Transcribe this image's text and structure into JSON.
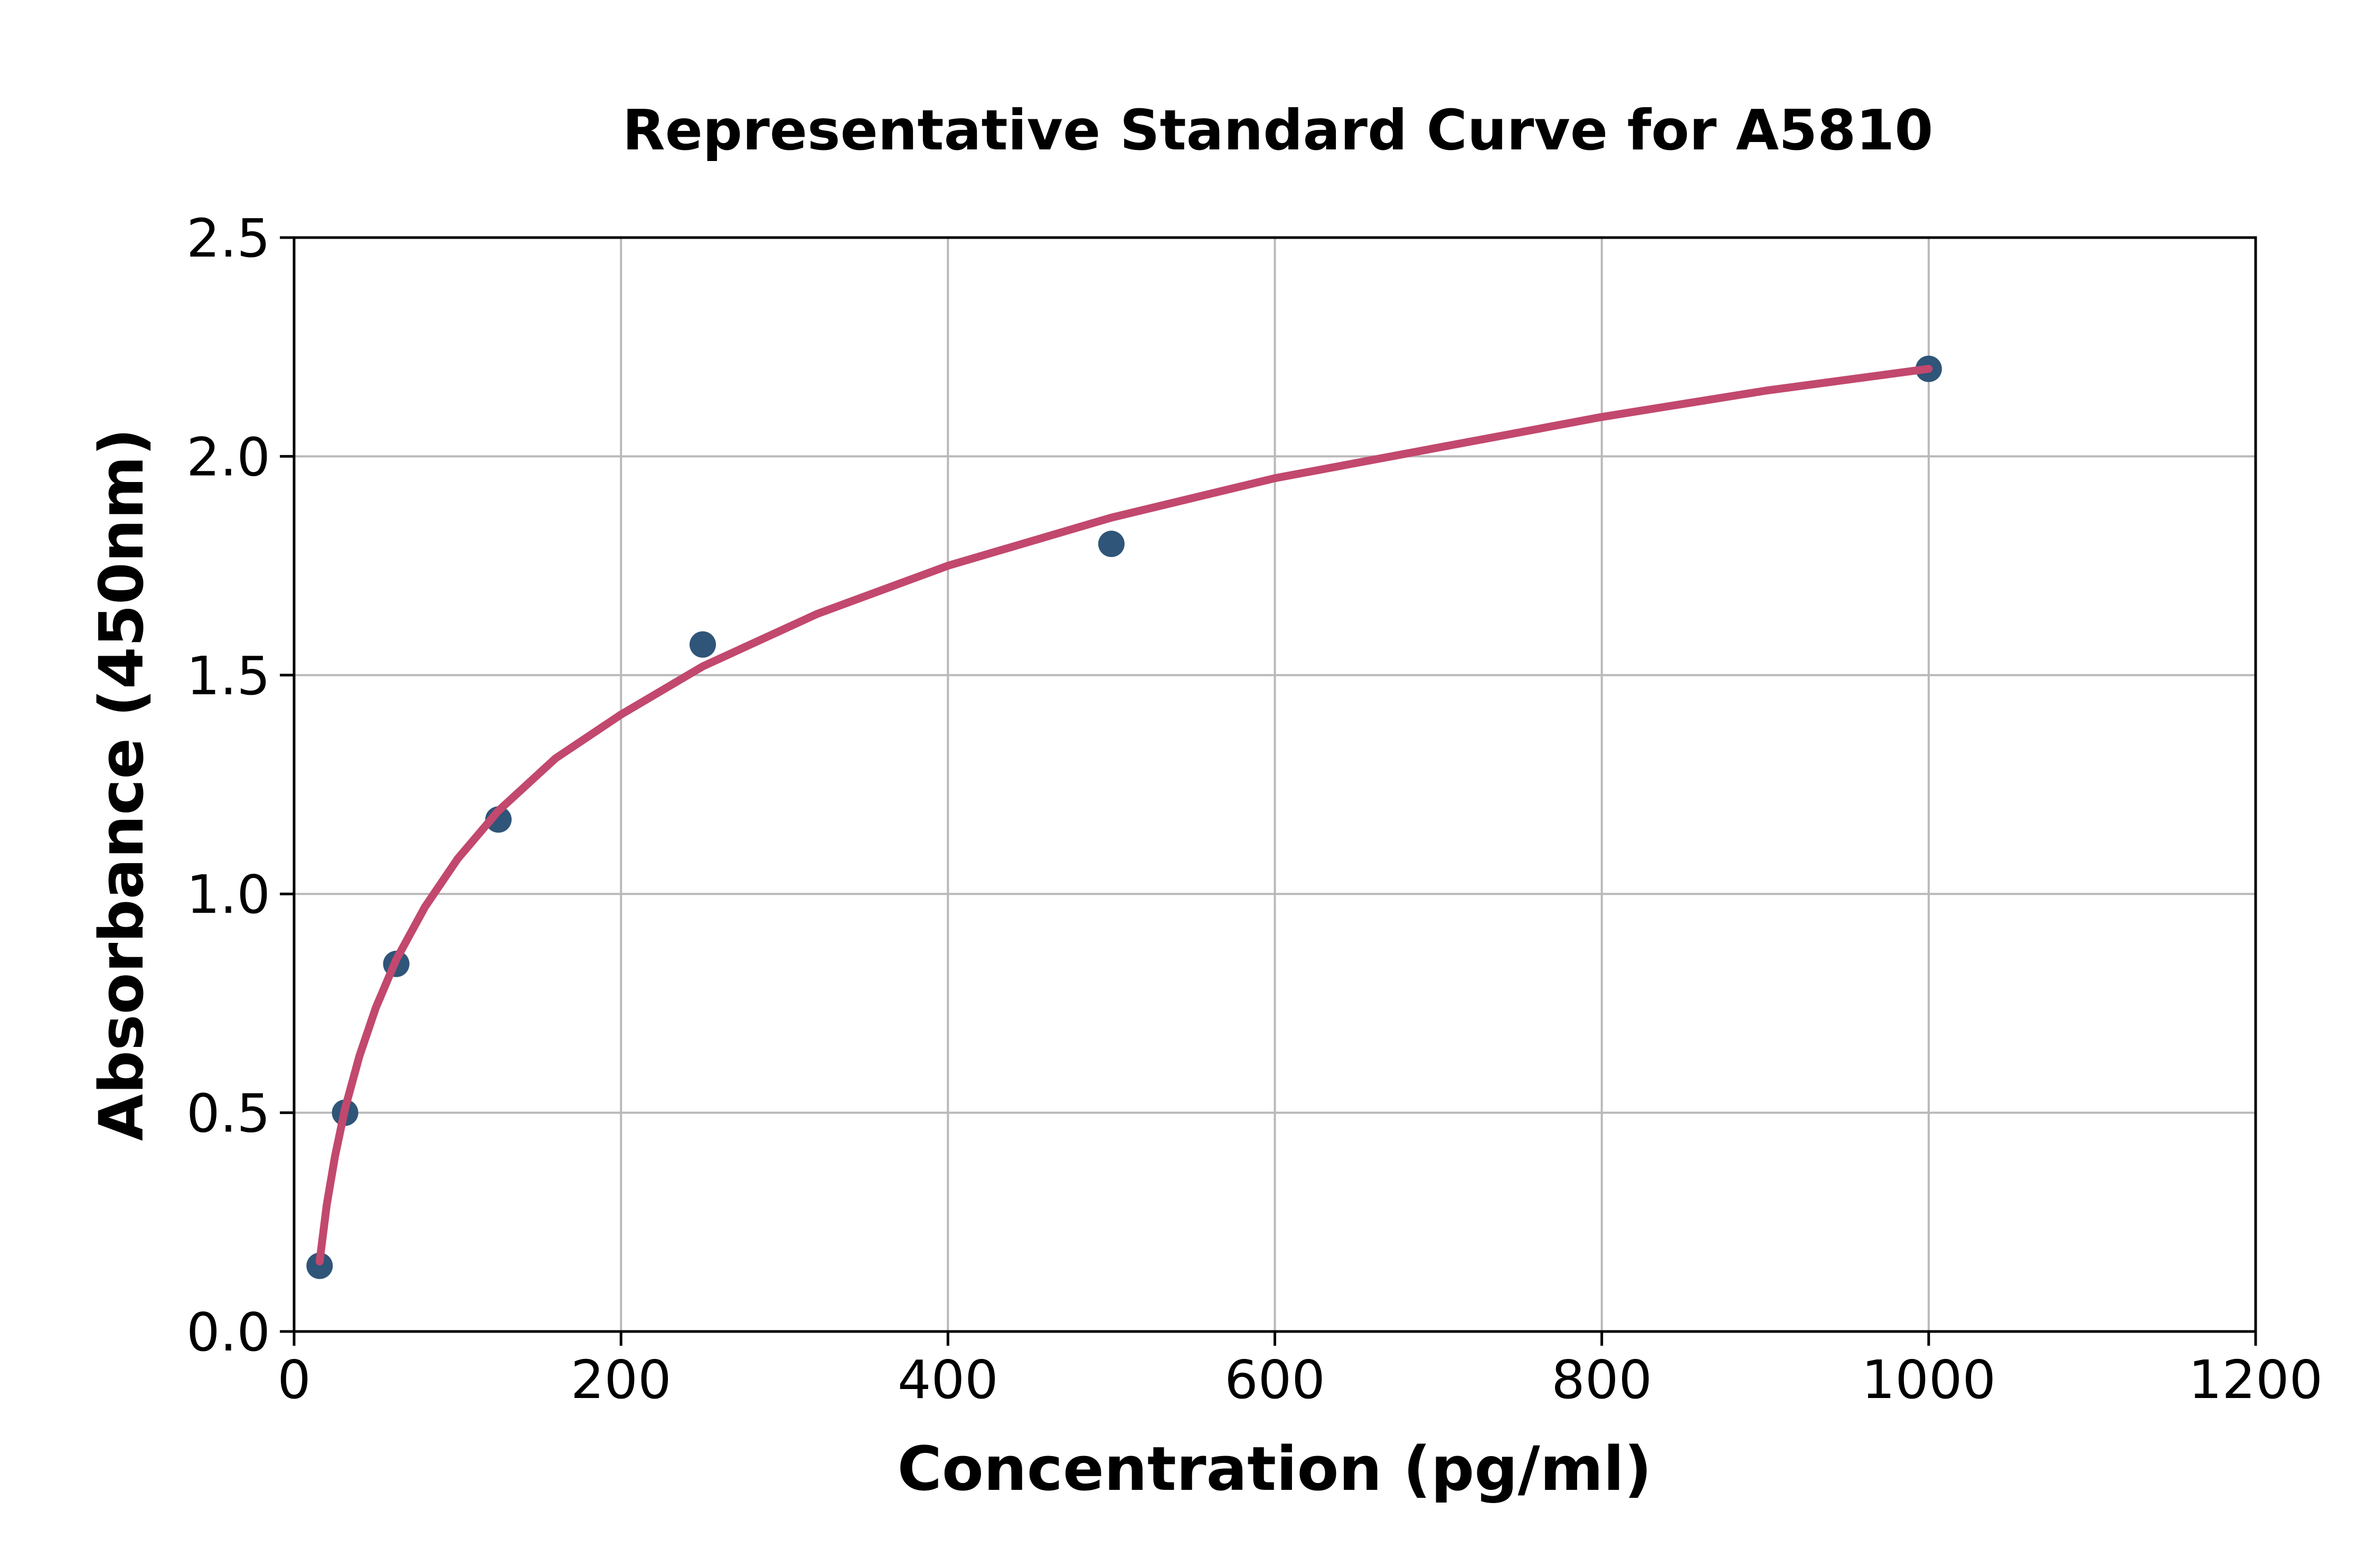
{
  "page": {
    "background": "#ffffff"
  },
  "chart_data": {
    "type": "scatter",
    "title": "Representative Standard Curve for A5810",
    "xlabel": "Concentration (pg/ml)",
    "ylabel": "Absorbance (450nm)",
    "xlim": [
      0,
      1200
    ],
    "ylim": [
      0.0,
      2.5
    ],
    "grid": true,
    "legend": false,
    "x_ticks": {
      "values": [
        0,
        200,
        400,
        600,
        800,
        1000,
        1200
      ],
      "labels": [
        "0",
        "200",
        "400",
        "600",
        "800",
        "1000",
        "1200"
      ]
    },
    "y_ticks": {
      "values": [
        0.0,
        0.5,
        1.0,
        1.5,
        2.0,
        2.5
      ],
      "labels": [
        "0.0",
        "0.5",
        "1.0",
        "1.5",
        "2.0",
        "2.5"
      ]
    },
    "series": [
      {
        "name": "standard-points",
        "type": "scatter",
        "color": "#2f5578",
        "marker_radius": 25,
        "x": [
          15.6,
          31.2,
          62.5,
          125,
          250,
          500,
          1000
        ],
        "y": [
          0.15,
          0.5,
          0.84,
          1.17,
          1.57,
          1.8,
          2.2
        ]
      },
      {
        "name": "fit-curve",
        "type": "line",
        "color": "#c2486e",
        "stroke_width": 15,
        "x": [
          15.6,
          20,
          25,
          31.2,
          40,
          50,
          62.5,
          80,
          100,
          125,
          160,
          200,
          250,
          320,
          400,
          500,
          600,
          700,
          800,
          900,
          1000
        ],
        "y": [
          0.16,
          0.29,
          0.4,
          0.51,
          0.63,
          0.74,
          0.85,
          0.97,
          1.08,
          1.19,
          1.31,
          1.41,
          1.52,
          1.64,
          1.75,
          1.86,
          1.95,
          2.02,
          2.09,
          2.15,
          2.2
        ]
      }
    ],
    "colors": {
      "grid": "#b9b9b9",
      "spine": "#000000",
      "tick": "#000000",
      "text": "#000000",
      "background": "#ffffff"
    }
  }
}
